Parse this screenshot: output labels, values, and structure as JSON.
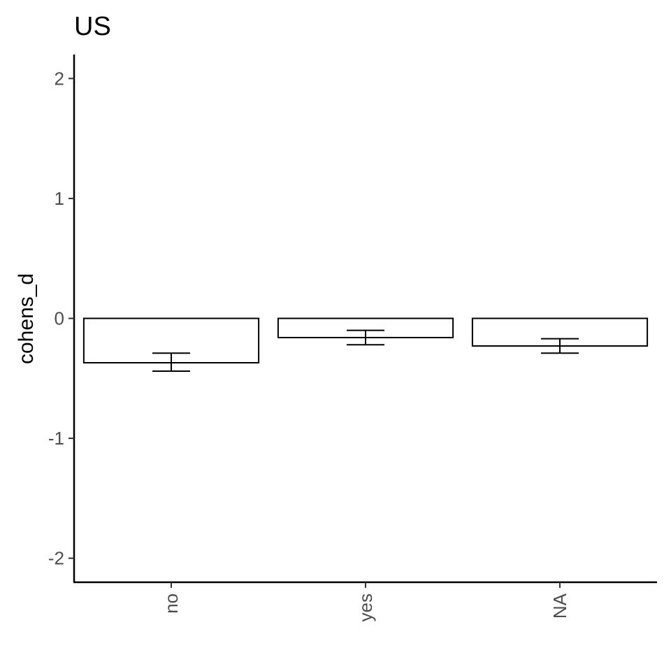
{
  "chart_data": {
    "type": "bar",
    "title": "US",
    "xlabel": "",
    "ylabel": "cohens_d",
    "categories": [
      "no",
      "yes",
      "NA"
    ],
    "values": [
      -0.37,
      -0.16,
      -0.23
    ],
    "error_low": [
      -0.44,
      -0.22,
      -0.29
    ],
    "error_high": [
      -0.29,
      -0.1,
      -0.17
    ],
    "ylim": [
      -2.2,
      2.2
    ],
    "yticks": [
      2,
      1,
      0,
      -1,
      -2
    ],
    "grid": false,
    "bar_fill": "#ffffff",
    "bar_stroke": "#000000"
  }
}
